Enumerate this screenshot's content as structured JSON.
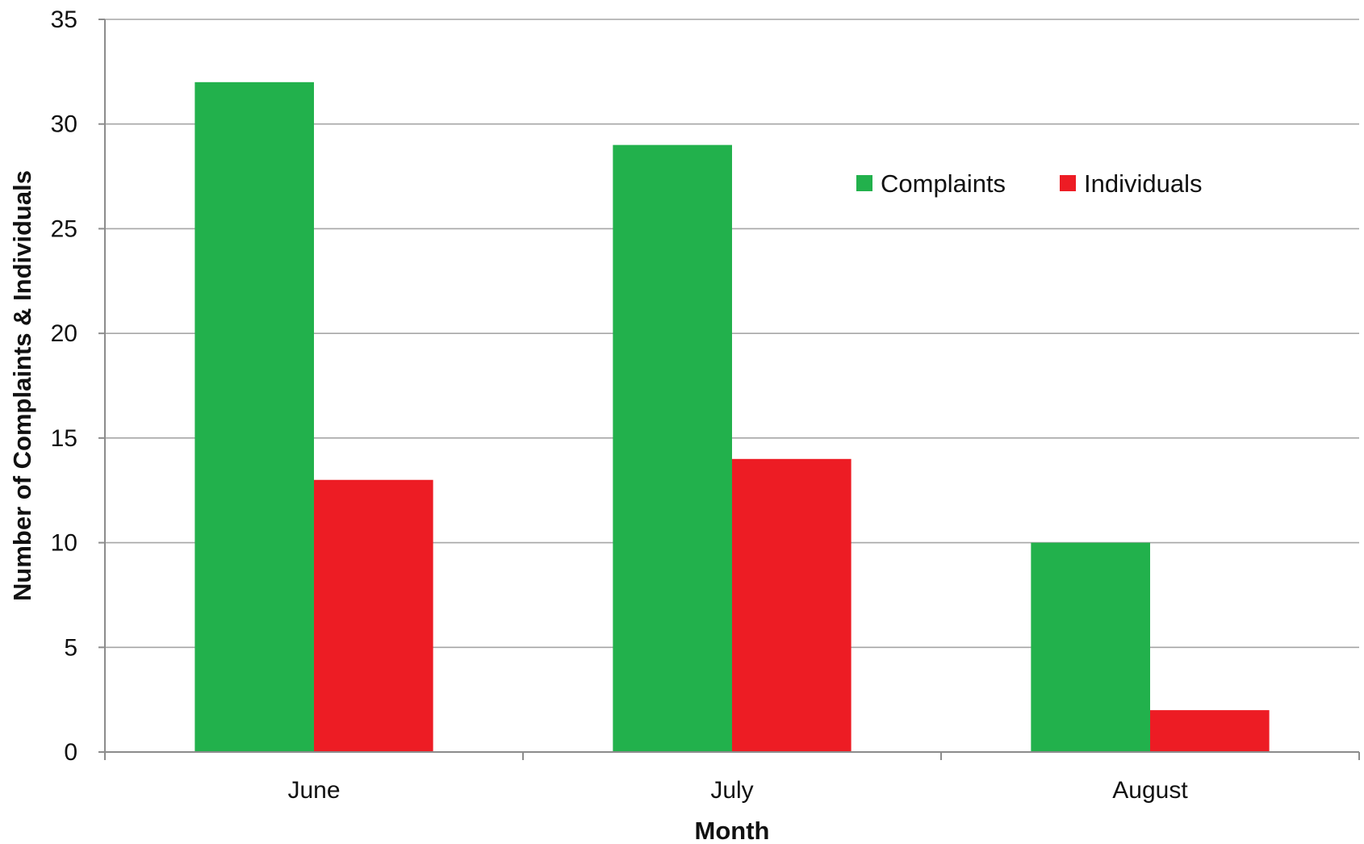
{
  "chart_data": {
    "type": "bar",
    "categories": [
      "June",
      "July",
      "August"
    ],
    "series": [
      {
        "name": "Complaints",
        "values": [
          32,
          29,
          10
        ],
        "color": "#22B14C"
      },
      {
        "name": "Individuals",
        "values": [
          13,
          14,
          2
        ],
        "color": "#ED1C24"
      }
    ],
    "title": "",
    "xlabel": "Month",
    "ylabel": "Number of Complaints & Individuals",
    "ylim": [
      0,
      35
    ],
    "yticks": [
      0,
      5,
      10,
      15,
      20,
      25,
      30,
      35
    ],
    "grid": true,
    "legend_position": "top-right"
  }
}
